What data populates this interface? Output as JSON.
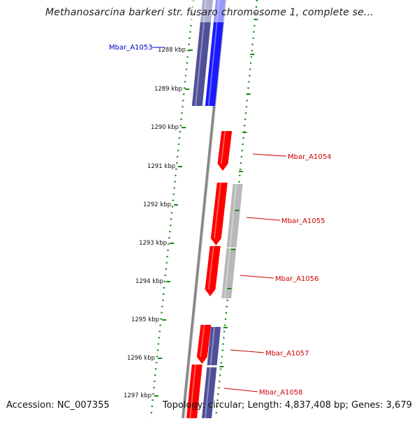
{
  "title": "Methanosarcina barkeri str. fusaro chromosome 1, complete se...",
  "accession_label": "Accession: NC_007355",
  "summary_label": "Topology: circular; Length: 4,837,408 bp; Genes: 3,679",
  "colors": {
    "forward_gene": "#ff0000",
    "reverse_gene": "#1a1aff",
    "rna_gene": "#505098",
    "other_feature": "#b8b8b8",
    "ruler_dots": "#1a8a1a",
    "backbone": "#888888",
    "label_blue": "#0000cc",
    "label_red": "#cc0000"
  },
  "ruler": {
    "ticks": [
      "1288 kbp",
      "1289 kbp",
      "1290 kbp",
      "1291 kbp",
      "1292 kbp",
      "1293 kbp",
      "1294 kbp",
      "1295 kbp",
      "1296 kbp",
      "1297 kbp"
    ]
  },
  "genes": [
    {
      "name": "Mbar_A1053",
      "color": "blue"
    },
    {
      "name": "Mbar_A1054",
      "color": "red"
    },
    {
      "name": "Mbar_A1055",
      "color": "red"
    },
    {
      "name": "Mbar_A1056",
      "color": "red"
    },
    {
      "name": "Mbar_A1057",
      "color": "red"
    },
    {
      "name": "Mbar_A1058",
      "color": "red"
    }
  ]
}
